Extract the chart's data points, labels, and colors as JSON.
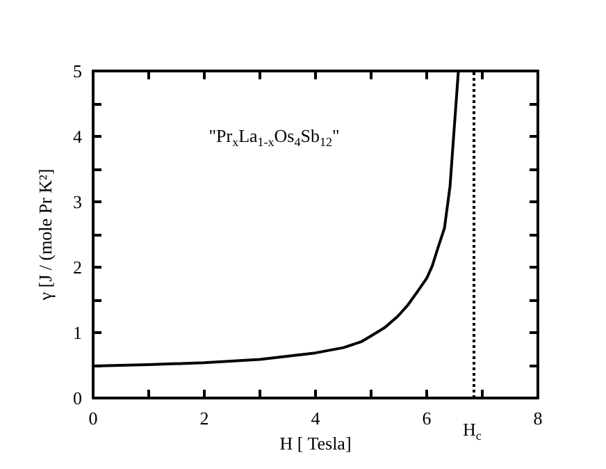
{
  "chart_data": {
    "type": "line",
    "xlabel": "H [ Tesla]",
    "ylabel": "γ [J / (mole Pr K²]",
    "annotations": [
      "\"Pr$_{x}$La$_{1-x}$Os$_{4}$Sb$_{12}$\""
    ],
    "x": [
      0,
      1,
      2,
      3,
      3.3,
      4,
      4.5,
      4.82,
      5,
      5.25,
      5.48,
      5.65,
      5.82,
      6,
      6.1,
      6.2,
      6.32,
      6.42,
      6.48,
      6.57
    ],
    "series": [
      {
        "color": "#000000",
        "values": [
          0.49,
          0.51,
          0.54,
          0.59,
          0.62,
          0.69,
          0.77,
          0.86,
          0.95,
          1.08,
          1.25,
          1.41,
          1.61,
          1.83,
          2.02,
          2.29,
          2.6,
          3.24,
          3.95,
          5.0
        ]
      }
    ],
    "xlim": [
      0,
      8
    ],
    "ylim": [
      0,
      5
    ],
    "xticks": [
      0,
      {
        "value": 1,
        "label": null
      },
      2,
      {
        "value": 3,
        "label": null
      },
      4,
      {
        "value": 5,
        "label": null
      },
      6,
      {
        "value": 7,
        "label": null
      },
      8
    ],
    "yticks": [
      0,
      {
        "value": 0.5,
        "label": null
      },
      1,
      {
        "value": 1.5,
        "label": null
      },
      2,
      {
        "value": 2.5,
        "label": null
      },
      3,
      {
        "value": 3.5,
        "label": null
      },
      4,
      {
        "value": 4.5,
        "label": null
      },
      5
    ],
    "ref_lines": [
      {
        "axis": "x",
        "value": 6.85,
        "label": "H$_{c}$",
        "color": "#000000",
        "line_style": "dotted"
      }
    ],
    "marker": "none",
    "line_style": "solid"
  }
}
